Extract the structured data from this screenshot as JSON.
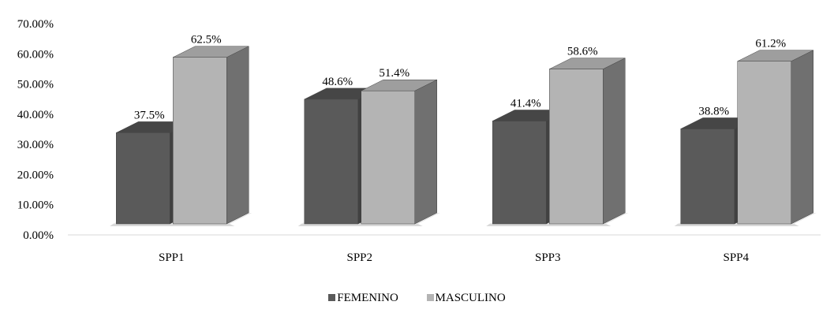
{
  "chart_data": {
    "type": "bar",
    "categories": [
      "SPP1",
      "SPP2",
      "SPP3",
      "SPP4"
    ],
    "series": [
      {
        "name": "FEMENINO",
        "values": [
          37.5,
          48.6,
          41.4,
          38.8
        ],
        "labels": [
          "37.5%",
          "48.6%",
          "41.4%",
          "38.8%"
        ],
        "color": "#5a5a5a"
      },
      {
        "name": "MASCULINO",
        "values": [
          62.5,
          51.4,
          58.6,
          61.2
        ],
        "labels": [
          "62.5%",
          "51.4%",
          "58.6%",
          "61.2%"
        ],
        "color": "#b4b4b4"
      }
    ],
    "yticks": [
      "0.00%",
      "10.00%",
      "20.00%",
      "30.00%",
      "40.00%",
      "50.00%",
      "60.00%",
      "70.00%"
    ],
    "ylim": [
      0,
      70
    ],
    "legend_position": "bottom",
    "style": "3d-clustered-columns",
    "grid": false
  }
}
